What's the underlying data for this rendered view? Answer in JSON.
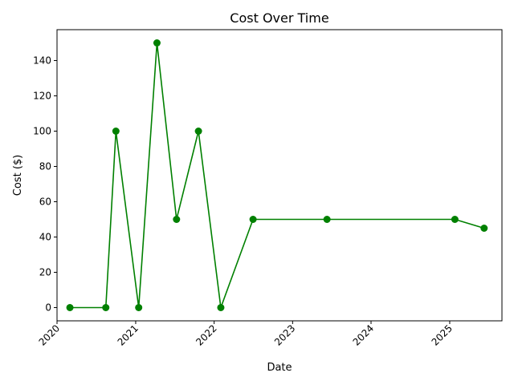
{
  "chart_data": {
    "type": "line",
    "title": "Cost Over Time",
    "xlabel": "Date",
    "ylabel": "Cost ($)",
    "x_tick_labels": [
      "2020",
      "2021",
      "2022",
      "2023",
      "2024",
      "2025"
    ],
    "y_tick_labels": [
      "0",
      "20",
      "40",
      "60",
      "80",
      "100",
      "120",
      "140"
    ],
    "ylim": [
      -7.5,
      157.5
    ],
    "xlim": [
      "2020-01-01",
      "2025-09-01"
    ],
    "grid": false,
    "series": [
      {
        "color": "#008000",
        "marker": "circle",
        "points": [
          {
            "x": "2020-03-01",
            "y": 0
          },
          {
            "x": "2020-08-15",
            "y": 0
          },
          {
            "x": "2020-10-01",
            "y": 100
          },
          {
            "x": "2021-01-15",
            "y": 0
          },
          {
            "x": "2021-04-10",
            "y": 150
          },
          {
            "x": "2021-07-10",
            "y": 50
          },
          {
            "x": "2021-10-20",
            "y": 100
          },
          {
            "x": "2022-02-01",
            "y": 0
          },
          {
            "x": "2022-07-01",
            "y": 50
          },
          {
            "x": "2023-06-10",
            "y": 50
          },
          {
            "x": "2025-01-25",
            "y": 50
          },
          {
            "x": "2025-06-10",
            "y": 45
          }
        ]
      }
    ]
  }
}
